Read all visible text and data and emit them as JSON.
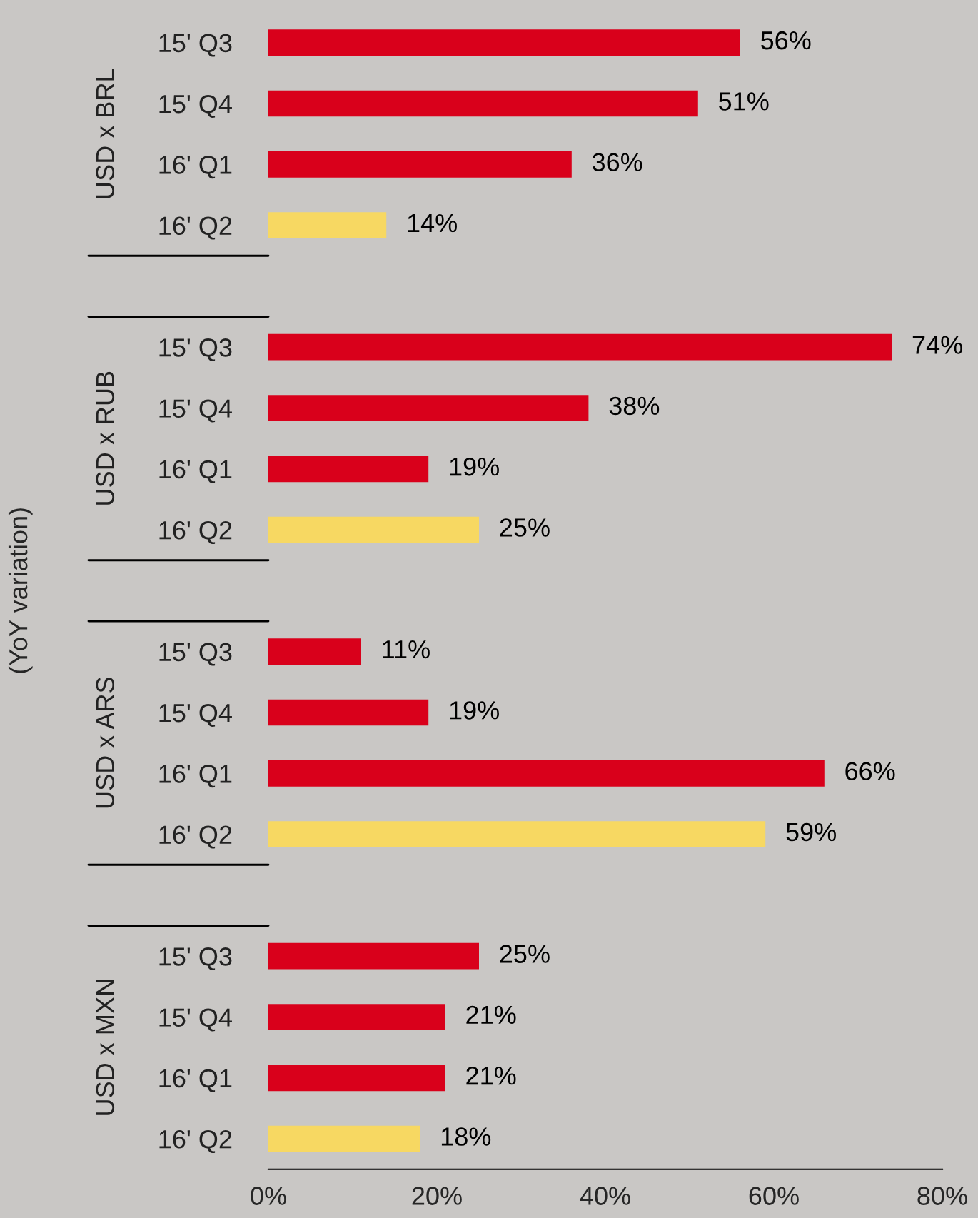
{
  "chart_data": {
    "type": "bar",
    "orientation": "horizontal",
    "ylabel": "(YoY variation)",
    "categories": [
      "15' Q3",
      "15' Q4",
      "16' Q1",
      "16' Q2",
      null,
      "15' Q3",
      "15' Q4",
      "16' Q1",
      "16' Q2",
      null,
      "15' Q3",
      "15' Q4",
      "16' Q1",
      "16' Q2",
      null,
      "15' Q3",
      "15' Q4",
      "16' Q1",
      "16' Q2"
    ],
    "values": [
      56,
      51,
      36,
      14,
      null,
      74,
      38,
      19,
      25,
      null,
      11,
      19,
      66,
      59,
      null,
      25,
      21,
      21,
      18
    ],
    "value_labels": [
      "56%",
      "51%",
      "36%",
      "14%",
      null,
      "74%",
      "38%",
      "19%",
      "25%",
      null,
      "11%",
      "19%",
      "66%",
      "59%",
      null,
      "25%",
      "21%",
      "21%",
      "18%"
    ],
    "colors": [
      "#d9001b",
      "#d9001b",
      "#d9001b",
      "#f7d862",
      null,
      "#d9001b",
      "#d9001b",
      "#d9001b",
      "#f7d862",
      null,
      "#d9001b",
      "#d9001b",
      "#d9001b",
      "#f7d862",
      null,
      "#d9001b",
      "#d9001b",
      "#d9001b",
      "#f7d862"
    ],
    "annotations": [
      "USD x BRL",
      "USD x RUB",
      "USD x ARS",
      "USD x MXN"
    ],
    "xlim": [
      0,
      80
    ],
    "xticks": [
      {
        "value": 0,
        "label": "0%"
      },
      {
        "value": 20,
        "label": "20%"
      },
      {
        "value": 40,
        "label": "40%"
      },
      {
        "value": 60,
        "label": "60%"
      },
      {
        "value": 80,
        "label": "80%"
      }
    ],
    "grid": false,
    "legend": false
  }
}
